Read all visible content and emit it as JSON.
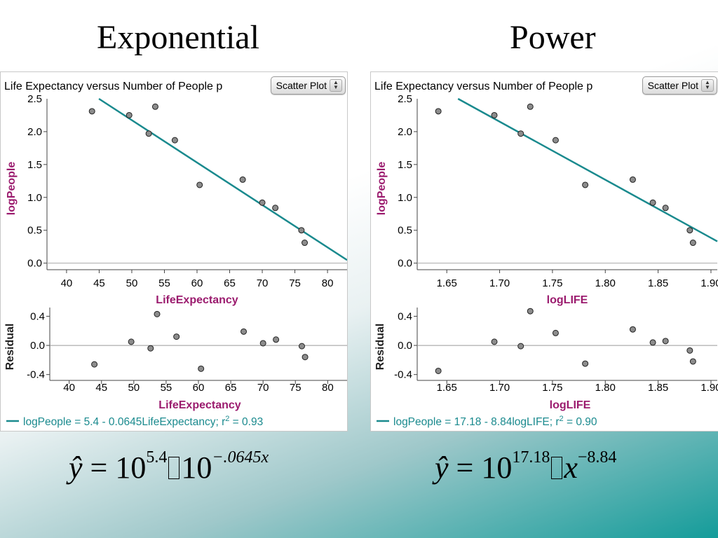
{
  "slide": {
    "title_left": "Exponential",
    "title_right": "Power"
  },
  "panels": [
    {
      "plot_title": "Life Expectancy versus Number of People p",
      "select_label": "Scatter Plot",
      "y_label": "logPeople",
      "residual_y_label": "Residual",
      "x_label": "LifeExpectancy",
      "residual_x_label": "LifeExpectancy",
      "equation_text": "logPeople = 5.4 - 0.0645LifeExpectancy; r",
      "r_exp": "2",
      "r_value": " = 0.93"
    },
    {
      "plot_title": "Life Expectancy versus Number of People p",
      "select_label": "Scatter Plot",
      "y_label": "logPeople",
      "residual_y_label": "Residual",
      "x_label": "logLIFE",
      "residual_x_label": "logLIFE",
      "equation_text": "logPeople = 17.18 - 8.84logLIFE; r",
      "r_exp": "2",
      "r_value": " = 0.90"
    }
  ],
  "formulas": {
    "left": {
      "lhs": "ŷ",
      "eq": "=",
      "base1": "10",
      "exp1": "5.4",
      "base2": "10",
      "exp2": "−.0645x"
    },
    "right": {
      "lhs": "ŷ",
      "eq": "=",
      "base1": "10",
      "exp1": "17.18",
      "var": "x",
      "exp2": "−8.84"
    }
  },
  "colors": {
    "fit_line": "#1a8a8e",
    "axis_label": "#9b1b6e",
    "points": "#8c8c8c"
  },
  "chart_data": [
    {
      "type": "scatter",
      "title": "Life Expectancy versus Number of People p",
      "xlabel": "LifeExpectancy",
      "ylabel": "logPeople",
      "xlim": [
        37,
        83
      ],
      "ylim": [
        -0.1,
        2.5
      ],
      "xticks": [
        40,
        45,
        50,
        55,
        60,
        65,
        70,
        75,
        80
      ],
      "yticks": [
        0.0,
        0.5,
        1.0,
        1.5,
        2.0
      ],
      "ytick_labels": [
        "0.0",
        "0.5",
        "1.0",
        "1.5",
        "2.0"
      ],
      "x": [
        43.9,
        49.6,
        52.6,
        53.6,
        56.6,
        60.4,
        67.0,
        70.0,
        72.0,
        76.0,
        76.5
      ],
      "y": [
        2.31,
        2.25,
        1.97,
        2.38,
        1.87,
        1.19,
        1.27,
        0.92,
        0.84,
        0.5,
        0.31
      ],
      "fit": {
        "intercept": 5.4,
        "slope": -0.0645,
        "r2": 0.93
      },
      "residual": {
        "ylabel": "Residual",
        "ylim": [
          -0.48,
          0.52
        ],
        "yticks": [
          -0.4,
          0.0,
          0.4
        ],
        "ytick_labels": [
          "-0.4",
          "0.0",
          "0.4"
        ],
        "values": [
          -0.26,
          0.05,
          -0.04,
          0.43,
          0.12,
          -0.32,
          0.19,
          0.03,
          0.08,
          -0.01,
          -0.16
        ]
      }
    },
    {
      "type": "scatter",
      "title": "Life Expectancy versus Number of People p",
      "xlabel": "logLIFE",
      "ylabel": "logPeople",
      "xlim": [
        1.622,
        1.906
      ],
      "ylim": [
        -0.1,
        2.5
      ],
      "xticks": [
        1.65,
        1.7,
        1.75,
        1.8,
        1.85,
        1.9
      ],
      "xtick_labels": [
        "1.65",
        "1.70",
        "1.75",
        "1.80",
        "1.85",
        "1.90"
      ],
      "yticks": [
        0.0,
        0.5,
        1.0,
        1.5,
        2.0
      ],
      "ytick_labels": [
        "0.0",
        "0.5",
        "1.0",
        "1.5",
        "2.0"
      ],
      "x": [
        1.642,
        1.695,
        1.72,
        1.729,
        1.753,
        1.781,
        1.826,
        1.845,
        1.857,
        1.88,
        1.883
      ],
      "y": [
        2.31,
        2.25,
        1.97,
        2.38,
        1.87,
        1.19,
        1.27,
        0.92,
        0.84,
        0.5,
        0.31
      ],
      "fit": {
        "intercept": 17.18,
        "slope": -8.84,
        "r2": 0.9
      },
      "residual": {
        "ylabel": "Residual",
        "ylim": [
          -0.48,
          0.52
        ],
        "yticks": [
          -0.4,
          0.0,
          0.4
        ],
        "ytick_labels": [
          "-0.4",
          "0.0",
          "0.4"
        ],
        "values": [
          -0.35,
          0.05,
          -0.01,
          0.47,
          0.17,
          -0.25,
          0.22,
          0.04,
          0.06,
          -0.07,
          -0.22
        ]
      }
    }
  ]
}
